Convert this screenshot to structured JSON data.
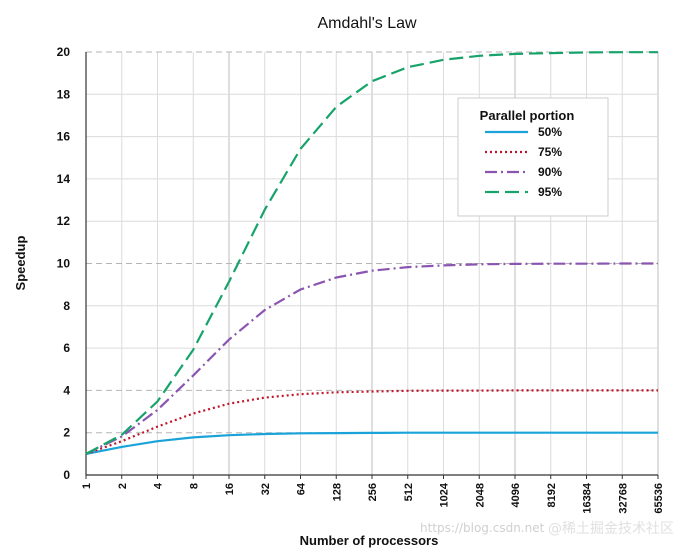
{
  "chart_data": {
    "type": "line",
    "title": "Amdahl's Law",
    "xlabel": "Number of processors",
    "ylabel": "Speedup",
    "x_scale": "log2",
    "x": [
      1,
      2,
      4,
      8,
      16,
      32,
      64,
      128,
      256,
      512,
      1024,
      2048,
      4096,
      8192,
      16384,
      32768,
      65536
    ],
    "x_tick_labels": [
      "1",
      "2",
      "4",
      "8",
      "16",
      "32",
      "64",
      "128",
      "256",
      "512",
      "1024",
      "2048",
      "4096",
      "8192",
      "16384",
      "32768",
      "65536"
    ],
    "y_ticks": [
      0,
      2,
      4,
      6,
      8,
      10,
      12,
      14,
      16,
      18,
      20
    ],
    "ylim": [
      0,
      20
    ],
    "grid": true,
    "legend_title": "Parallel portion",
    "legend_placement": "top-right",
    "series": [
      {
        "name": "50%",
        "color": "#1aa3d9",
        "style": "solid",
        "values": [
          1.0,
          1.33,
          1.6,
          1.78,
          1.88,
          1.94,
          1.97,
          1.98,
          1.99,
          2.0,
          2.0,
          2.0,
          2.0,
          2.0,
          2.0,
          2.0,
          2.0
        ]
      },
      {
        "name": "75%",
        "color": "#c0142a",
        "style": "dotted",
        "values": [
          1.0,
          1.6,
          2.29,
          2.91,
          3.37,
          3.66,
          3.82,
          3.91,
          3.95,
          3.98,
          3.99,
          3.99,
          4.0,
          4.0,
          4.0,
          4.0,
          4.0
        ]
      },
      {
        "name": "90%",
        "color": "#8a55b0",
        "style": "dashdot",
        "values": [
          1.0,
          1.82,
          3.08,
          4.71,
          6.4,
          7.8,
          8.77,
          9.34,
          9.66,
          9.83,
          9.91,
          9.96,
          9.98,
          9.99,
          9.99,
          10.0,
          10.0
        ]
      },
      {
        "name": "95%",
        "color": "#17a36a",
        "style": "dashed",
        "values": [
          1.0,
          1.9,
          3.48,
          5.93,
          9.14,
          12.55,
          15.42,
          17.41,
          18.62,
          19.28,
          19.63,
          19.82,
          19.91,
          19.95,
          19.98,
          19.99,
          19.99
        ]
      }
    ]
  },
  "watermarks": {
    "url": "https://blog.csdn.net",
    "brand": "@稀土掘金技术社区"
  }
}
